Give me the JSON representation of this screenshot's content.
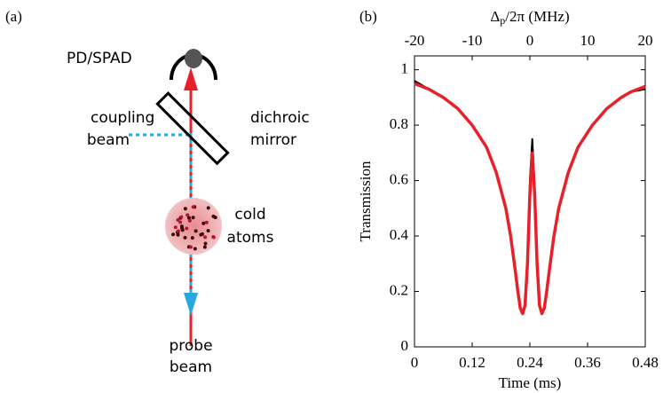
{
  "panel_a": {
    "label": "(a)",
    "detector": "PD/SPAD",
    "coupling": [
      "coupling",
      "beam"
    ],
    "mirror": [
      "dichroic",
      "mirror"
    ],
    "atoms": [
      "cold",
      "atoms"
    ],
    "probe": [
      "probe",
      "beam"
    ]
  },
  "chart_data": {
    "type": "line",
    "panel_label": "(b)",
    "xlabel": "Time (ms)",
    "ylabel": "Transmission",
    "x2label": {
      "symbol": "Δ",
      "subscript": "p",
      "rest": "/2π (MHz)"
    },
    "x": [
      0,
      0.03,
      0.06,
      0.09,
      0.12,
      0.15,
      0.17,
      0.19,
      0.2,
      0.21,
      0.215,
      0.22,
      0.225,
      0.23,
      0.235,
      0.24,
      0.245,
      0.25,
      0.255,
      0.26,
      0.265,
      0.27,
      0.275,
      0.28,
      0.29,
      0.3,
      0.32,
      0.34,
      0.37,
      0.4,
      0.43,
      0.45,
      0.48
    ],
    "series": [
      {
        "color": "#000000",
        "values": [
          0.96,
          0.93,
          0.9,
          0.86,
          0.8,
          0.72,
          0.63,
          0.5,
          0.4,
          0.27,
          0.2,
          0.14,
          0.12,
          0.16,
          0.32,
          0.6,
          0.75,
          0.58,
          0.3,
          0.15,
          0.12,
          0.14,
          0.2,
          0.27,
          0.4,
          0.5,
          0.63,
          0.72,
          0.8,
          0.86,
          0.9,
          0.92,
          0.93
        ]
      },
      {
        "color": "#e8202a",
        "values": [
          0.95,
          0.93,
          0.9,
          0.86,
          0.8,
          0.72,
          0.63,
          0.5,
          0.4,
          0.27,
          0.2,
          0.14,
          0.12,
          0.15,
          0.3,
          0.55,
          0.7,
          0.55,
          0.3,
          0.15,
          0.12,
          0.14,
          0.2,
          0.27,
          0.4,
          0.5,
          0.63,
          0.72,
          0.8,
          0.86,
          0.9,
          0.92,
          0.94
        ]
      }
    ],
    "xlim": [
      0,
      0.48
    ],
    "xticks": [
      0,
      0.12,
      0.24,
      0.36,
      0.48
    ],
    "x2lim": [
      -20,
      20
    ],
    "x2ticks": [
      -20,
      -10,
      0,
      10,
      20
    ],
    "ylim": [
      0,
      1.05
    ],
    "yticks": [
      0,
      0.2,
      0.4,
      0.6,
      0.8,
      1
    ]
  }
}
